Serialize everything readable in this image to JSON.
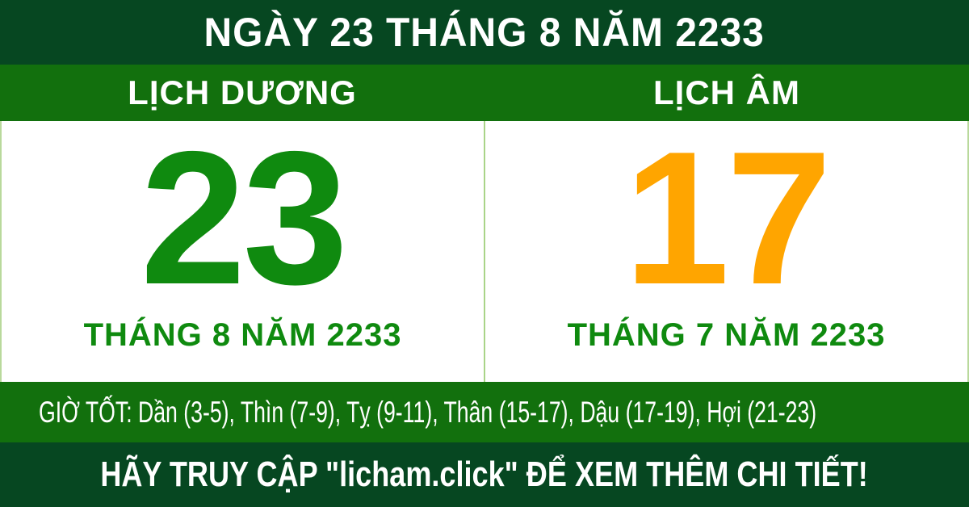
{
  "header": {
    "title": "NGÀY 23 THÁNG 8 NĂM 2233"
  },
  "calendar": {
    "solar": {
      "label": "LỊCH DƯƠNG",
      "day": "23",
      "month_year": "THÁNG 8 NĂM 2233"
    },
    "lunar": {
      "label": "LỊCH ÂM",
      "day": "17",
      "month_year": "THÁNG 7 NĂM 2233"
    }
  },
  "good_hours": {
    "text": "GIỜ TỐT: Dần (3-5), Thìn (7-9), Tỵ (9-11), Thân (15-17), Dậu (17-19), Hợi (21-23)"
  },
  "footer": {
    "text": "HÃY TRUY CẬP \"licham.click\" ĐỂ XEM THÊM CHI TIẾT!"
  },
  "colors": {
    "dark_green": "#064721",
    "band_green": "#12700d",
    "day_green": "#0f8a0f",
    "day_orange": "#ffa500",
    "divider_green": "#a9d488",
    "panel_background": "#ffffff",
    "text_white": "#ffffff"
  }
}
